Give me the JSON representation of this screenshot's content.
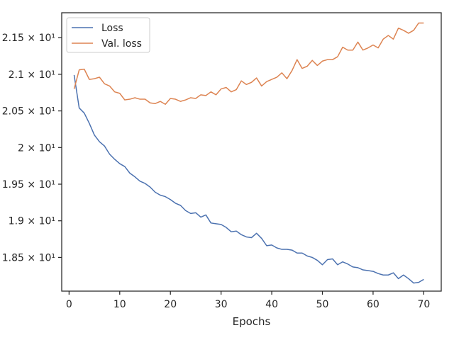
{
  "chart_data": {
    "type": "line",
    "title": "",
    "xlabel": "Epochs",
    "ylabel": "",
    "xlim": [
      -1.45,
      73.45
    ],
    "ylim": [
      18.04,
      21.84
    ],
    "xticks": [
      0,
      10,
      20,
      30,
      40,
      50,
      60,
      70
    ],
    "xtick_labels": [
      "0",
      "10",
      "20",
      "30",
      "40",
      "50",
      "60",
      "70"
    ],
    "yticks": [
      18.5,
      19.0,
      19.5,
      20.0,
      20.5,
      21.0,
      21.5
    ],
    "ytick_labels": [
      "1.85 × 10¹",
      "1.9 × 10¹",
      "1.95 × 10¹",
      "2 × 10¹",
      "2.05 × 10¹",
      "2.1 × 10¹",
      "2.15 × 10¹"
    ],
    "grid": false,
    "legend_position": "top-left",
    "colors": {
      "Loss": "#4c72b0",
      "Val. loss": "#dd8452",
      "axes": "#262626"
    },
    "x": [
      1,
      2,
      3,
      4,
      5,
      6,
      7,
      8,
      9,
      10,
      11,
      12,
      13,
      14,
      15,
      16,
      17,
      18,
      19,
      20,
      21,
      22,
      23,
      24,
      25,
      26,
      27,
      28,
      29,
      30,
      31,
      32,
      33,
      34,
      35,
      36,
      37,
      38,
      39,
      40,
      41,
      42,
      43,
      44,
      45,
      46,
      47,
      48,
      49,
      50,
      51,
      52,
      53,
      54,
      55,
      56,
      57,
      58,
      59,
      60,
      61,
      62,
      63,
      64,
      65,
      66,
      67,
      68,
      69,
      70
    ],
    "series": [
      {
        "name": "Loss",
        "values": [
          20.99,
          20.54,
          20.47,
          20.33,
          20.17,
          20.08,
          20.02,
          19.91,
          19.84,
          19.78,
          19.74,
          19.65,
          19.6,
          19.54,
          19.51,
          19.46,
          19.39,
          19.35,
          19.33,
          19.29,
          19.24,
          19.21,
          19.14,
          19.1,
          19.11,
          19.05,
          19.08,
          18.97,
          18.96,
          18.95,
          18.91,
          18.85,
          18.86,
          18.81,
          18.78,
          18.77,
          18.83,
          18.76,
          18.66,
          18.67,
          18.63,
          18.61,
          18.61,
          18.6,
          18.56,
          18.56,
          18.52,
          18.5,
          18.46,
          18.4,
          18.47,
          18.48,
          18.4,
          18.44,
          18.41,
          18.37,
          18.36,
          18.33,
          18.32,
          18.31,
          18.28,
          18.26,
          18.26,
          18.29,
          18.21,
          18.26,
          18.21,
          18.15,
          18.16,
          18.2
        ]
      },
      {
        "name": "Val. loss",
        "values": [
          20.8,
          21.06,
          21.07,
          20.93,
          20.94,
          20.96,
          20.87,
          20.84,
          20.76,
          20.74,
          20.65,
          20.66,
          20.68,
          20.66,
          20.66,
          20.61,
          20.6,
          20.63,
          20.59,
          20.67,
          20.66,
          20.63,
          20.65,
          20.68,
          20.67,
          20.72,
          20.71,
          20.76,
          20.72,
          20.8,
          20.82,
          20.76,
          20.79,
          20.91,
          20.86,
          20.89,
          20.95,
          20.84,
          20.9,
          20.93,
          20.96,
          21.02,
          20.94,
          21.05,
          21.2,
          21.08,
          21.11,
          21.19,
          21.12,
          21.18,
          21.2,
          21.2,
          21.24,
          21.37,
          21.33,
          21.33,
          21.44,
          21.33,
          21.36,
          21.4,
          21.36,
          21.48,
          21.53,
          21.48,
          21.63,
          21.6,
          21.56,
          21.6,
          21.7,
          21.7
        ]
      }
    ]
  }
}
